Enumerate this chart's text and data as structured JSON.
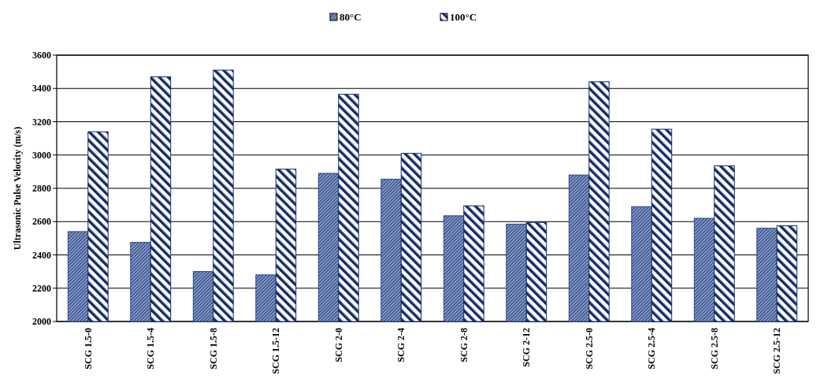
{
  "chart_data": {
    "type": "bar",
    "ylabel": "Ultrasonic Pulse Velocity (m/s)",
    "categories": [
      "SCG 1.5-0",
      "SCG 1.5-4",
      "SCG 1.5-8",
      "SCG 1.5-12",
      "SCG 2-0",
      "SCG 2-4",
      "SCG 2-8",
      "SCG 2-12",
      "SCG 2.5-0",
      "SCG 2.5-4",
      "SCG 2.5-8",
      "SCG 2.5-12"
    ],
    "series": [
      {
        "name": "80°C",
        "color": "#2a4585",
        "values": [
          2540,
          2475,
          2300,
          2280,
          2890,
          2855,
          2635,
          2585,
          2880,
          2690,
          2620,
          2560
        ]
      },
      {
        "name": "100°C",
        "color": "#142a6a",
        "values": [
          3140,
          3470,
          3510,
          2915,
          3365,
          3010,
          2695,
          2595,
          3440,
          3155,
          2935,
          2575
        ]
      }
    ],
    "ylim": [
      2000,
      3600
    ],
    "yticks": [
      2000,
      2200,
      2400,
      2600,
      2800,
      3000,
      3200,
      3400,
      3600
    ],
    "grid": "y",
    "legend": "top"
  }
}
